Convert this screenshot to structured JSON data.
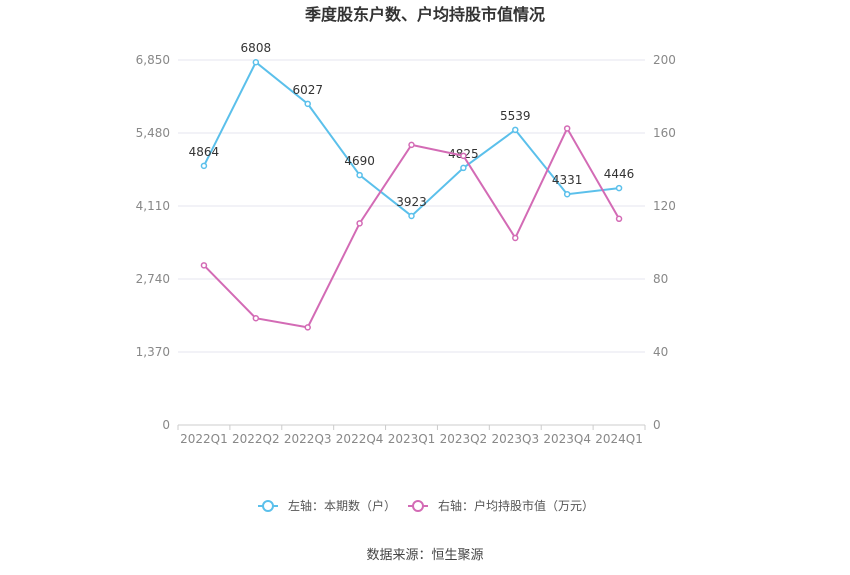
{
  "chart_data": {
    "type": "line",
    "title": "季度股东户数、户均持股市值情况",
    "categories": [
      "2022Q1",
      "2022Q2",
      "2022Q3",
      "2022Q4",
      "2023Q1",
      "2023Q2",
      "2023Q3",
      "2023Q4",
      "2024Q1"
    ],
    "left_axis": {
      "ticks": [
        "0",
        "1,370",
        "2,740",
        "4,110",
        "5,480",
        "6,850"
      ],
      "ylim": [
        0,
        6850
      ]
    },
    "right_axis": {
      "ticks": [
        "0",
        "40",
        "80",
        "120",
        "160",
        "200"
      ],
      "ylim": [
        0,
        200
      ]
    },
    "series": [
      {
        "name": "左轴：本期数（户）",
        "axis": "left",
        "color": "#5bc0eb",
        "values": [
          4864,
          6808,
          6027,
          4690,
          3923,
          4825,
          5539,
          4331,
          4446
        ],
        "labels": [
          "4864",
          "6808",
          "6027",
          "4690",
          "3923",
          "4825",
          "5539",
          "4331",
          "4446"
        ]
      },
      {
        "name": "右轴：户均持股市值（万元）",
        "axis": "right",
        "color": "#d36bb5",
        "values": [
          87.5,
          58.5,
          53.5,
          110.5,
          153.5,
          147.5,
          102.5,
          162.5,
          113
        ]
      }
    ],
    "grid": true,
    "legend_position": "bottom"
  },
  "source": "数据来源：恒生聚源"
}
